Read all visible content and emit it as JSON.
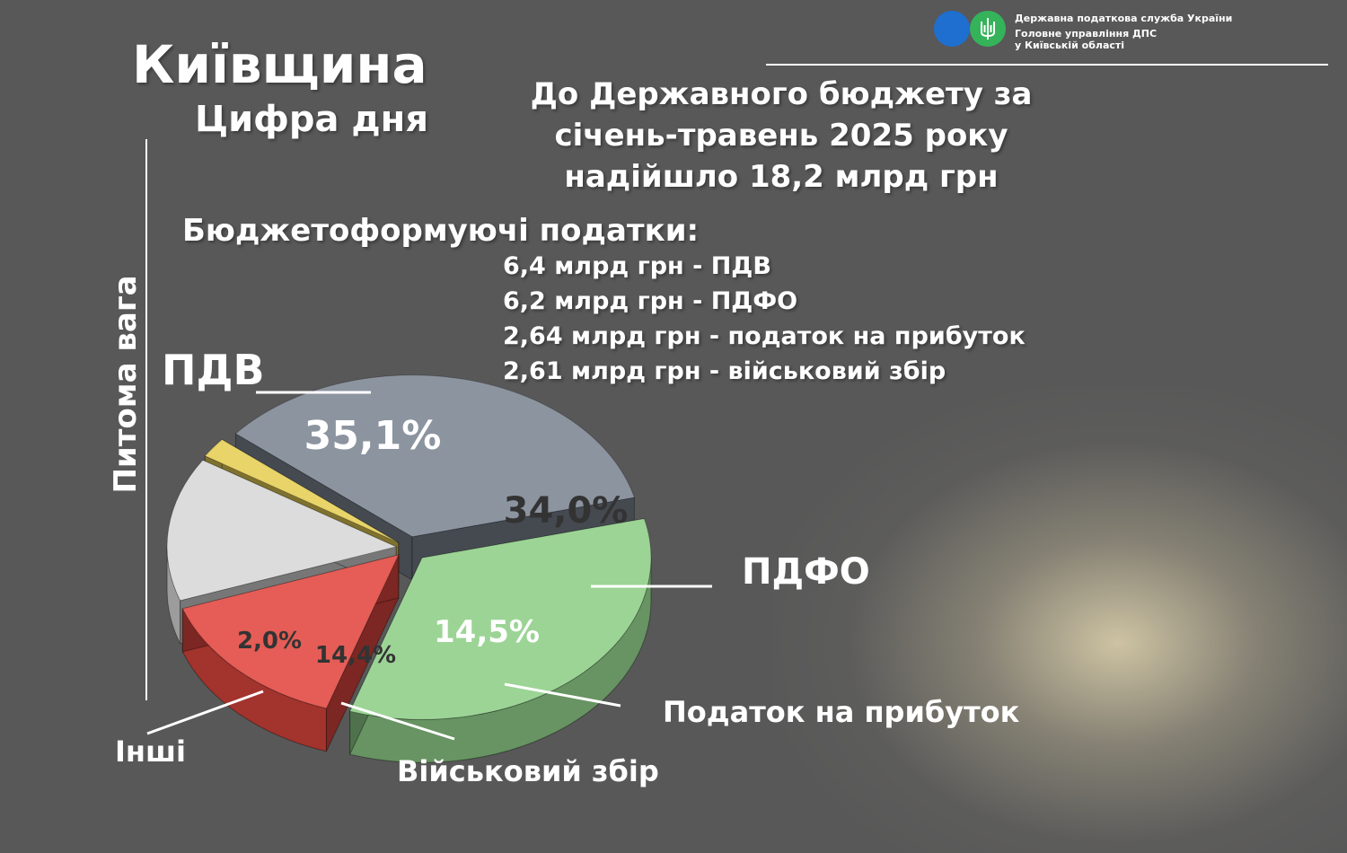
{
  "org": {
    "line1": "Державна податкова служба України",
    "line2": "Головне управління ДПС",
    "line3": "у Київській області"
  },
  "region_title": "Київщина",
  "subtitle": "Цифра дня",
  "headline": [
    "До Державного  бюджету за",
    "січень-травень 2025 року",
    "надійшло 18,2 млрд грн"
  ],
  "taxes_title": "Бюджетоформуючі податки:",
  "tax_lines": [
    "6,4 млрд грн - ПДВ",
    "6,2 млрд грн - ПДФО",
    "2,64 млрд грн - податок на прибуток",
    "2,61 млрд грн - військовий збір"
  ],
  "colors": {
    "pdv": "#7d8693",
    "pdfo": "#8fce88",
    "profit": "#e2473f",
    "military": "#d8d8d8",
    "other": "#e6cf55"
  },
  "chart_data": {
    "type": "pie",
    "title": "",
    "ylabel": "Питома вага",
    "values": [
      35.1,
      34.0,
      14.5,
      14.4,
      2.0
    ],
    "categories": [
      "ПДВ",
      "ПДФО",
      "Податок на прибуток",
      "Військовий збір",
      "Інші"
    ],
    "value_labels": [
      "35,1%",
      "34,0%",
      "14,5%",
      "14,4%",
      "2,0%"
    ]
  }
}
